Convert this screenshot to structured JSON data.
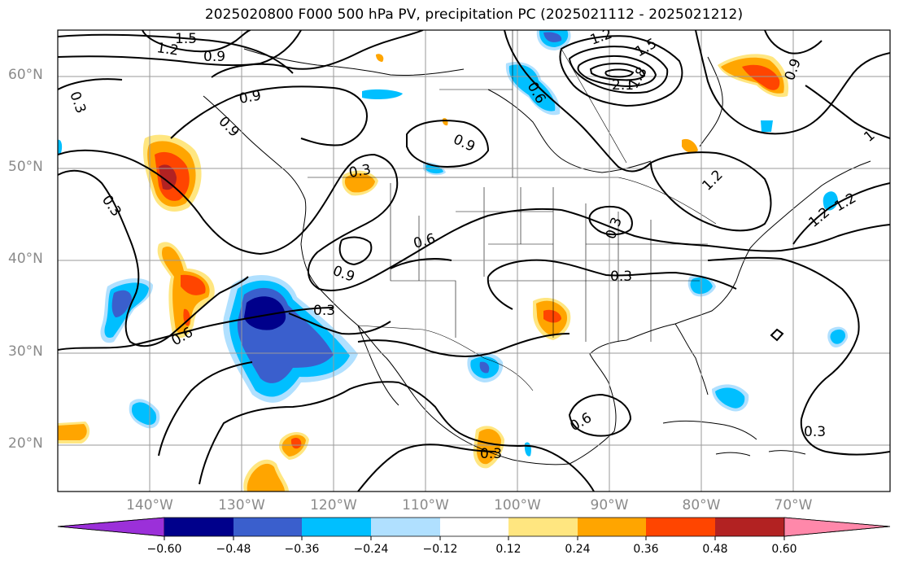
{
  "title": "2025020800 F000 500 hPa PV, precipitation PC (2025021112 - 2025021212)",
  "lat_labels": [
    "60°N",
    "50°N",
    "40°N",
    "30°N",
    "20°N"
  ],
  "lon_labels": [
    "140°W",
    "130°W",
    "120°W",
    "110°W",
    "100°W",
    "90°W",
    "80°W",
    "70°W"
  ],
  "contour_labels": [
    "1.5",
    "1.2",
    "0.9",
    "0.3",
    "0.9",
    "0.6",
    "1.2",
    "1.5",
    "2.1",
    "1.8",
    "0.9",
    "1.2",
    "0.9",
    "0.3",
    "0.3",
    "0.6",
    "0.9",
    "0.3",
    "0.3",
    "1.2",
    "0.3",
    "0.6",
    "0.6",
    "0.3",
    "0.3",
    "1.2",
    "0.9",
    "1"
  ],
  "colorbar": {
    "ticks": [
      "−0.60",
      "−0.48",
      "−0.36",
      "−0.24",
      "−0.12",
      "0.12",
      "0.24",
      "0.36",
      "0.48",
      "0.60"
    ],
    "colors": [
      "#9b30d9",
      "#00008b",
      "#3a5fcd",
      "#00bfff",
      "#b0e0ff",
      "#ffffff",
      "#ffe680",
      "#ffa500",
      "#ff4500",
      "#b22222",
      "#ff88aa"
    ]
  }
}
